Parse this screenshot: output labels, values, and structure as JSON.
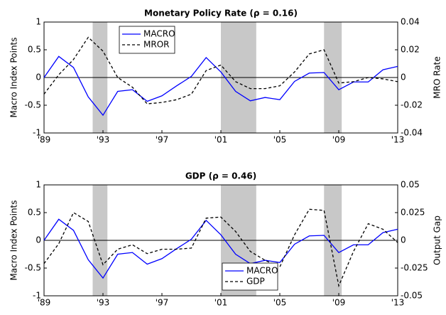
{
  "chart_data": [
    {
      "type": "line",
      "title": "Monetary Policy Rate (ρ = 0.16)",
      "y_label": "Macro Index Points",
      "y2_label": "MRO Rate",
      "x": [
        1989,
        1990,
        1991,
        1992,
        1993,
        1994,
        1995,
        1996,
        1997,
        1998,
        1999,
        2000,
        2001,
        2002,
        2003,
        2004,
        2005,
        2006,
        2007,
        2008,
        2009,
        2010,
        2011,
        2012,
        2013
      ],
      "xlim": [
        1989,
        2013
      ],
      "xticks": [
        {
          "value": 1989,
          "label": "'89"
        },
        {
          "value": 1993,
          "label": "'93"
        },
        {
          "value": 1997,
          "label": "'97"
        },
        {
          "value": 2001,
          "label": "'01"
        },
        {
          "value": 2005,
          "label": "'05"
        },
        {
          "value": 2009,
          "label": "'09"
        },
        {
          "value": 2013,
          "label": "'13"
        }
      ],
      "ylim": [
        -1,
        1
      ],
      "yticks": [
        -1,
        -0.5,
        0,
        0.5,
        1
      ],
      "y2lim": [
        -0.04,
        0.04
      ],
      "y2ticks": [
        -0.04,
        -0.02,
        0,
        0.02,
        0.04
      ],
      "shaded_x": [
        [
          1992.3,
          1993.3
        ],
        [
          2001.0,
          2003.4
        ],
        [
          2008.0,
          2009.2
        ]
      ],
      "shade_color": "#c8c8c8",
      "legend": "upper left",
      "series": [
        {
          "name": "MACRO",
          "color": "#0000ff",
          "line_style": "solid",
          "values": [
            0,
            0.38,
            0.18,
            -0.35,
            -0.68,
            -0.25,
            -0.22,
            -0.43,
            -0.33,
            -0.15,
            0.02,
            0.36,
            0.1,
            -0.25,
            -0.42,
            -0.36,
            -0.4,
            -0.07,
            0.08,
            0.09,
            -0.22,
            -0.08,
            -0.08,
            0.14,
            0.2
          ]
        },
        {
          "name": "MROR",
          "color": "#000000",
          "line_style": "dashed",
          "axis": "y2",
          "values": [
            -0.012,
            0.002,
            0.013,
            0.029,
            0.019,
            0.0,
            -0.007,
            -0.019,
            -0.018,
            -0.016,
            -0.012,
            0.005,
            0.009,
            -0.003,
            -0.008,
            -0.008,
            -0.006,
            0.004,
            0.017,
            0.02,
            -0.004,
            -0.003,
            0.0,
            -0.001,
            -0.003
          ]
        }
      ]
    },
    {
      "type": "line",
      "title": "GDP (ρ = 0.46)",
      "y_label": "Macro Index Points",
      "y2_label": "Output Gap",
      "x": [
        1989,
        1990,
        1991,
        1992,
        1993,
        1994,
        1995,
        1996,
        1997,
        1998,
        1999,
        2000,
        2001,
        2002,
        2003,
        2004,
        2005,
        2006,
        2007,
        2008,
        2009,
        2010,
        2011,
        2012,
        2013
      ],
      "xlim": [
        1989,
        2013
      ],
      "xticks": [
        {
          "value": 1989,
          "label": "'89"
        },
        {
          "value": 1993,
          "label": "'93"
        },
        {
          "value": 1997,
          "label": "'97"
        },
        {
          "value": 2001,
          "label": "'01"
        },
        {
          "value": 2005,
          "label": "'05"
        },
        {
          "value": 2009,
          "label": "'09"
        },
        {
          "value": 2013,
          "label": "'13"
        }
      ],
      "ylim": [
        -1,
        1
      ],
      "yticks": [
        -1,
        -0.5,
        0,
        0.5,
        1
      ],
      "y2lim": [
        -0.05,
        0.05
      ],
      "y2ticks": [
        -0.05,
        -0.025,
        0,
        0.025,
        0.05
      ],
      "shaded_x": [
        [
          1992.3,
          1993.3
        ],
        [
          2001.0,
          2003.4
        ],
        [
          2008.0,
          2009.2
        ]
      ],
      "shade_color": "#c8c8c8",
      "legend": "lower center",
      "series": [
        {
          "name": "MACRO",
          "color": "#0000ff",
          "line_style": "solid",
          "values": [
            0,
            0.38,
            0.18,
            -0.35,
            -0.68,
            -0.25,
            -0.22,
            -0.43,
            -0.33,
            -0.15,
            0.02,
            0.36,
            0.1,
            -0.25,
            -0.42,
            -0.36,
            -0.4,
            -0.07,
            0.08,
            0.09,
            -0.22,
            -0.08,
            -0.08,
            0.14,
            0.2
          ]
        },
        {
          "name": "GDP",
          "color": "#000000",
          "line_style": "dashed",
          "axis": "y2",
          "values": [
            -0.021,
            -0.003,
            0.025,
            0.017,
            -0.022,
            -0.008,
            -0.004,
            -0.012,
            -0.008,
            -0.008,
            -0.007,
            0.02,
            0.021,
            0.008,
            -0.01,
            -0.018,
            -0.024,
            0.005,
            0.028,
            0.027,
            -0.041,
            -0.01,
            0.015,
            0.01,
            -0.002
          ]
        }
      ]
    }
  ]
}
